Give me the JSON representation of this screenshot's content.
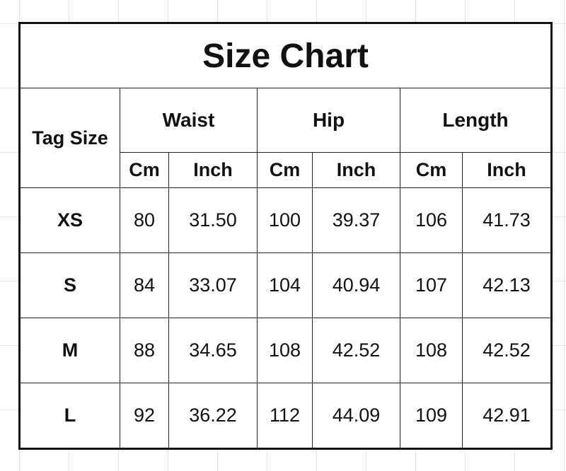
{
  "title": "Size Chart",
  "headers": {
    "tag_size": "Tag Size",
    "groups": [
      "Waist",
      "Hip",
      "Length"
    ],
    "units": [
      "Cm",
      "Inch",
      "Cm",
      "Inch",
      "Cm",
      "Inch"
    ]
  },
  "rows": [
    {
      "tag": "XS",
      "values": [
        "80",
        "31.50",
        "100",
        "39.37",
        "106",
        "41.73"
      ]
    },
    {
      "tag": "S",
      "values": [
        "84",
        "33.07",
        "104",
        "40.94",
        "107",
        "42.13"
      ]
    },
    {
      "tag": "M",
      "values": [
        "88",
        "34.65",
        "108",
        "42.52",
        "108",
        "42.52"
      ]
    },
    {
      "tag": "L",
      "values": [
        "92",
        "36.22",
        "112",
        "44.09",
        "109",
        "42.91"
      ]
    }
  ]
}
